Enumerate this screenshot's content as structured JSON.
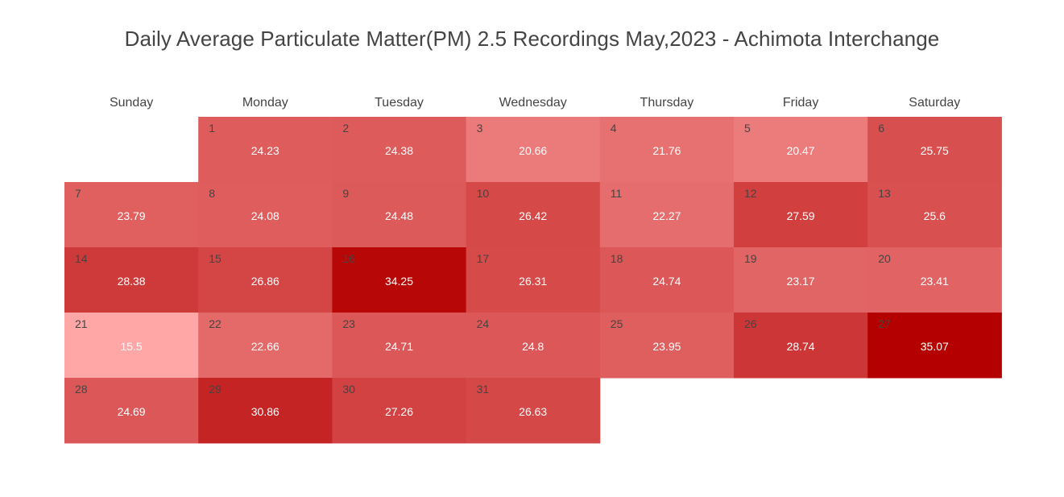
{
  "title": "Daily Average Particulate Matter(PM) 2.5 Recordings May,2023 - Achimota Interchange",
  "chart_data": {
    "type": "heatmap",
    "layout": "calendar",
    "month": "May",
    "year": 2023,
    "first_weekday_index": 1,
    "weekdays": [
      "Sunday",
      "Monday",
      "Tuesday",
      "Wednesday",
      "Thursday",
      "Friday",
      "Saturday"
    ],
    "days": [
      1,
      2,
      3,
      4,
      5,
      6,
      7,
      8,
      9,
      10,
      11,
      12,
      13,
      14,
      15,
      16,
      17,
      18,
      19,
      20,
      21,
      22,
      23,
      24,
      25,
      26,
      27,
      28,
      29,
      30,
      31
    ],
    "values": [
      24.23,
      24.38,
      20.66,
      21.76,
      20.47,
      25.75,
      23.79,
      24.08,
      24.48,
      26.42,
      22.27,
      27.59,
      25.6,
      28.38,
      26.86,
      34.25,
      26.31,
      24.74,
      23.17,
      23.41,
      15.5,
      22.66,
      24.71,
      24.8,
      23.95,
      28.74,
      35.07,
      24.69,
      30.86,
      27.26,
      26.63
    ],
    "value_labels": [
      "24.23",
      "24.38",
      "20.66",
      "21.76",
      "20.47",
      "25.75",
      "23.79",
      "24.08",
      "24.48",
      "26.42",
      "22.27",
      "27.59",
      "25.6",
      "28.38",
      "26.86",
      "34.25",
      "26.31",
      "24.74",
      "23.17",
      "23.41",
      "15.5",
      "22.66",
      "24.71",
      "24.8",
      "23.95",
      "28.74",
      "35.07",
      "24.69",
      "30.86",
      "27.26",
      "26.63"
    ],
    "colorscale": {
      "low_color": "#ffa6a6",
      "high_color": "#b50000"
    }
  }
}
